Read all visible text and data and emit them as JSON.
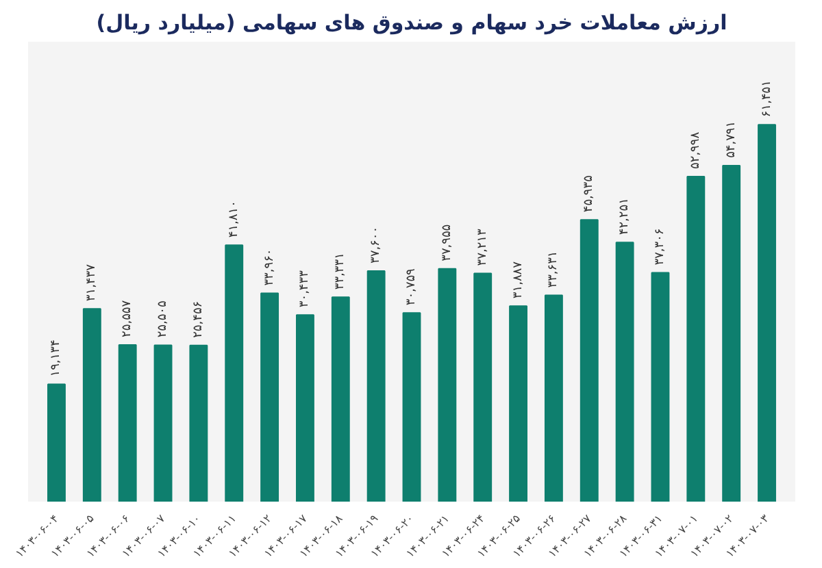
{
  "chart_data": {
    "type": "bar",
    "title": "ارزش معاملات خرد سهام و صندوق های سهامی (میلیارد ریال)",
    "categories": [
      "۱۴۰۳-۰۶-۰۴",
      "۱۴۰۳-۰۶-۰۵",
      "۱۴۰۳-۰۶-۰۶",
      "۱۴۰۳-۰۶-۰۷",
      "۱۴۰۳-۰۶-۱۰",
      "۱۴۰۳-۰۶-۱۱",
      "۱۴۰۳-۰۶-۱۲",
      "۱۴۰۳-۰۶-۱۷",
      "۱۴۰۳-۰۶-۱۸",
      "۱۴۰۳-۰۶-۱۹",
      "۱۴۰۳-۰۶-۲۰",
      "۱۴۰۳-۰۶-۲۱",
      "۱۴۰۳-۰۶-۲۴",
      "۱۴۰۳-۰۶-۲۵",
      "۱۴۰۳-۰۶-۲۶",
      "۱۴۰۳-۰۶-۲۷",
      "۱۴۰۳-۰۶-۲۸",
      "۱۴۰۳-۰۶-۳۱",
      "۱۴۰۳-۰۷-۰۱",
      "۱۴۰۳-۰۷-۰۲",
      "۱۴۰۳-۰۷-۰۳"
    ],
    "values": [
      19134,
      31437,
      25557,
      25505,
      25456,
      41810,
      33960,
      30433,
      33331,
      37600,
      30759,
      37955,
      37213,
      31887,
      33631,
      45935,
      42251,
      37306,
      52998,
      54791,
      61451
    ],
    "value_labels": [
      "۱۹,۱۳۴",
      "۳۱,۴۳۷",
      "۲۵,۵۵۷",
      "۲۵,۵۰۵",
      "۲۵,۴۵۶",
      "۴۱,۸۱۰",
      "۳۳,۹۶۰",
      "۳۰,۴۳۳",
      "۳۳,۳۳۱",
      "۳۷,۶۰۰",
      "۳۰,۷۵۹",
      "۳۷,۹۵۵",
      "۳۷,۲۱۳",
      "۳۱,۸۸۷",
      "۳۳,۶۳۱",
      "۴۵,۹۳۵",
      "۴۲,۲۵۱",
      "۳۷,۳۰۶",
      "۵۲,۹۹۸",
      "۵۴,۷۹۱",
      "۶۱,۴۵۱"
    ],
    "color": "#0e7f6e",
    "grid": false
  }
}
